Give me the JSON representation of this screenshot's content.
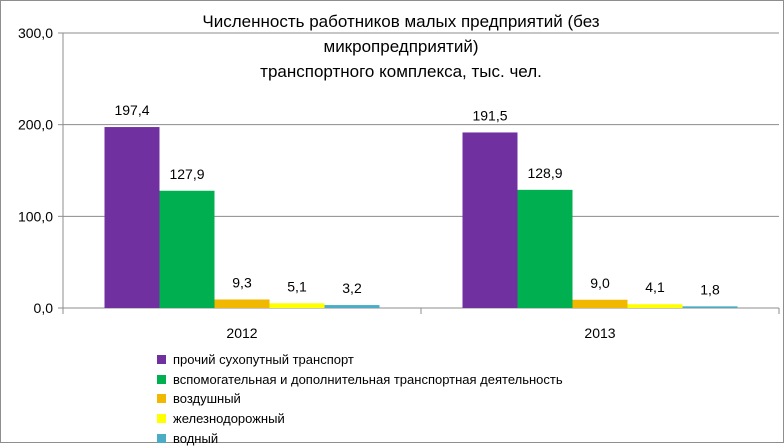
{
  "chart_data": {
    "type": "bar",
    "title": [
      "Численность работников малых предприятий (без",
      "микропредприятий)",
      "транспортного комплекса, тыс. чел."
    ],
    "categories": [
      "2012",
      "2013"
    ],
    "ylim": [
      0,
      300
    ],
    "yticks": [
      0,
      100,
      200,
      300
    ],
    "ytick_labels": [
      "0,0",
      "100,0",
      "200,0",
      "300,0"
    ],
    "grid": true,
    "legend_position": "bottom",
    "series": [
      {
        "name": "прочий сухопутный транспорт",
        "color": "#7030a0",
        "values": [
          197.4,
          191.5
        ],
        "labels": [
          "197,4",
          "191,5"
        ]
      },
      {
        "name": "вспомогательная и дополнительная транспортная деятельность",
        "color": "#00b050",
        "values": [
          127.9,
          128.9
        ],
        "labels": [
          "127,9",
          "128,9"
        ]
      },
      {
        "name": "воздушный",
        "color": "#f0b800",
        "values": [
          9.3,
          9.0
        ],
        "labels": [
          "9,3",
          "9,0"
        ]
      },
      {
        "name": "железнодорожный",
        "color": "#ffff00",
        "values": [
          5.1,
          4.1
        ],
        "labels": [
          "5,1",
          "4,1"
        ]
      },
      {
        "name": "водный",
        "color": "#4bacc6",
        "values": [
          3.2,
          1.8
        ],
        "labels": [
          "3,2",
          "1,8"
        ]
      }
    ]
  }
}
